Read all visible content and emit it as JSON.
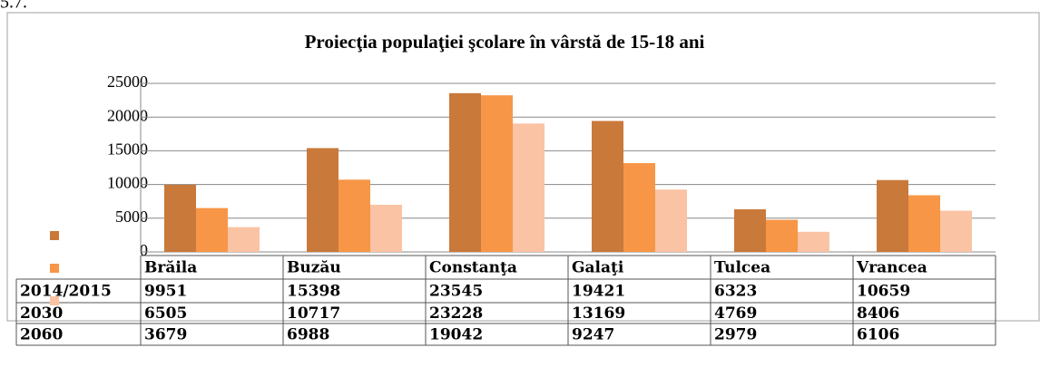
{
  "top_text": "5.7.",
  "chart_data": {
    "type": "bar",
    "title": "Proiecţia populaţiei şcolare în vârstă de 15-18 ani",
    "categories": [
      "Brăila",
      "Buzău",
      "Constanţa",
      "Galaţi",
      "Tulcea",
      "Vrancea"
    ],
    "series": [
      {
        "name": "2014/2015",
        "color": "#c9793a",
        "values": [
          9951,
          15398,
          23545,
          19421,
          6323,
          10659
        ]
      },
      {
        "name": "2030",
        "color": "#f79646",
        "values": [
          6505,
          10717,
          23228,
          13169,
          4769,
          8406
        ]
      },
      {
        "name": "2060",
        "color": "#fac3a3",
        "values": [
          3679,
          6988,
          19042,
          9247,
          2979,
          6106
        ]
      }
    ],
    "ylim": [
      0,
      25000
    ],
    "yticks": [
      0,
      5000,
      10000,
      15000,
      20000,
      25000
    ],
    "grid": true
  }
}
